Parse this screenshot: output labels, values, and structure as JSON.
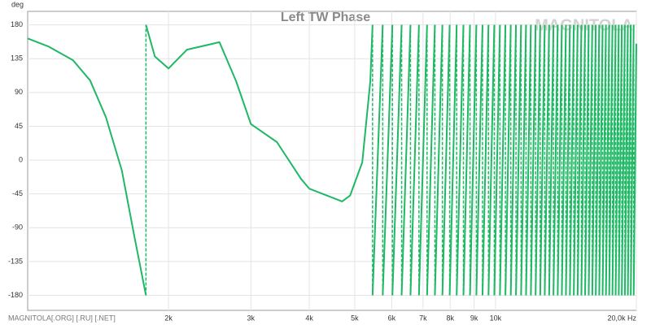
{
  "chart_data": {
    "type": "line",
    "title": "Left TW Phase",
    "y_label": "deg",
    "watermark": "MAGNITOLA",
    "footer": "MAGNITOLA[.ORG] [.RU] [.NET]",
    "xscale": "log",
    "grid": true,
    "xlim": [
      1000,
      20000
    ],
    "ylim": [
      -200,
      198
    ],
    "xticks": [
      {
        "value": 2000,
        "label": "2k"
      },
      {
        "value": 3000,
        "label": "3k"
      },
      {
        "value": 4000,
        "label": "4k"
      },
      {
        "value": 5000,
        "label": "5k"
      },
      {
        "value": 6000,
        "label": "6k"
      },
      {
        "value": 7000,
        "label": "7k"
      },
      {
        "value": 8000,
        "label": "8k"
      },
      {
        "value": 9000,
        "label": "9k"
      },
      {
        "value": 10000,
        "label": "10k"
      },
      {
        "value": 20000,
        "label": "20,0k Hz"
      }
    ],
    "yticks": [
      180,
      135,
      90,
      45,
      0,
      -45,
      -90,
      -135,
      -180
    ],
    "x": [
      1000,
      1110,
      1250,
      1360,
      1470,
      1590,
      1690,
      1790,
      1790,
      1790,
      1870,
      2000,
      2190,
      2570,
      2790,
      3000,
      3410,
      3840,
      4000,
      4700,
      4890,
      5190,
      5400,
      5460,
      5460,
      5460,
      5740,
      5740,
      5740,
      6020,
      6020,
      6020,
      6300,
      6300,
      6300,
      6580,
      6580,
      6580,
      6860,
      6860,
      6860,
      7140,
      7140,
      7140,
      7420,
      7420,
      7420,
      7700,
      7700,
      7700,
      7980,
      7980,
      7980,
      8260,
      8260,
      8260,
      8540,
      8540,
      8540,
      8820,
      8820,
      8820,
      9100,
      9100,
      9100,
      9380,
      9380,
      9380,
      9660,
      9660,
      9660,
      9940,
      9940,
      9940,
      10220,
      10220,
      10220,
      10500,
      10500,
      10500,
      10780,
      10780,
      10780,
      11060,
      11060,
      11060,
      11340,
      11340,
      11340,
      11620,
      11620,
      11620,
      11900,
      11900,
      11900,
      12180,
      12180,
      12180,
      12460,
      12460,
      12460,
      12740,
      12740,
      12740,
      13020,
      13020,
      13020,
      13300,
      13300,
      13300,
      13580,
      13580,
      13580,
      13860,
      13860,
      13860,
      14140,
      14140,
      14140,
      14420,
      14420,
      14420,
      14700,
      14700,
      14700,
      14980,
      14980,
      14980,
      15260,
      15260,
      15260,
      15540,
      15540,
      15540,
      15820,
      15820,
      15820,
      16100,
      16100,
      16100,
      16380,
      16380,
      16380,
      16660,
      16660,
      16660,
      16940,
      16940,
      16940,
      17220,
      17220,
      17220,
      17500,
      17500,
      17500,
      17780,
      17780,
      17780,
      18060,
      18060,
      18060,
      18340,
      18340,
      18340,
      18620,
      18620,
      18620,
      18900,
      18900,
      18900,
      19180,
      19180,
      19180,
      19460,
      19460,
      19460,
      19740,
      19740,
      19740,
      20000
    ],
    "series": [
      {
        "name": "Left TW Phase",
        "color": "#1fb865",
        "values": [
          162,
          151,
          133,
          106,
          57,
          -14,
          -101,
          -180,
          null,
          180,
          138,
          122,
          147,
          157,
          105,
          48,
          24,
          -25,
          -38,
          -55,
          -47,
          -3,
          105,
          180,
          null,
          -180,
          180,
          null,
          -180,
          180,
          null,
          -180,
          180,
          null,
          -180,
          180,
          null,
          -180,
          180,
          null,
          -180,
          180,
          null,
          -180,
          180,
          null,
          -180,
          180,
          null,
          -180,
          180,
          null,
          -180,
          180,
          null,
          -180,
          180,
          null,
          -180,
          180,
          null,
          -180,
          180,
          null,
          -180,
          180,
          null,
          -180,
          180,
          null,
          -180,
          180,
          null,
          -180,
          180,
          null,
          -180,
          180,
          null,
          -180,
          180,
          null,
          -180,
          180,
          null,
          -180,
          180,
          null,
          -180,
          180,
          null,
          -180,
          180,
          null,
          -180,
          180,
          null,
          -180,
          180,
          null,
          -180,
          180,
          null,
          -180,
          180,
          null,
          -180,
          180,
          null,
          -180,
          180,
          null,
          -180,
          180,
          null,
          -180,
          180,
          null,
          -180,
          180,
          null,
          -180,
          180,
          null,
          -180,
          180,
          null,
          -180,
          180,
          null,
          -180,
          180,
          null,
          -180,
          180,
          null,
          -180,
          180,
          null,
          -180,
          180,
          null,
          -180,
          180,
          null,
          -180,
          180,
          null,
          -180,
          180,
          null,
          -180,
          180,
          null,
          -180,
          180,
          null,
          -180,
          180,
          null,
          -180,
          180,
          null,
          -180,
          180,
          null,
          -180,
          180,
          null,
          -180,
          180,
          null,
          -180,
          180,
          null,
          -180,
          180,
          null,
          -180,
          155
        ]
      }
    ]
  }
}
